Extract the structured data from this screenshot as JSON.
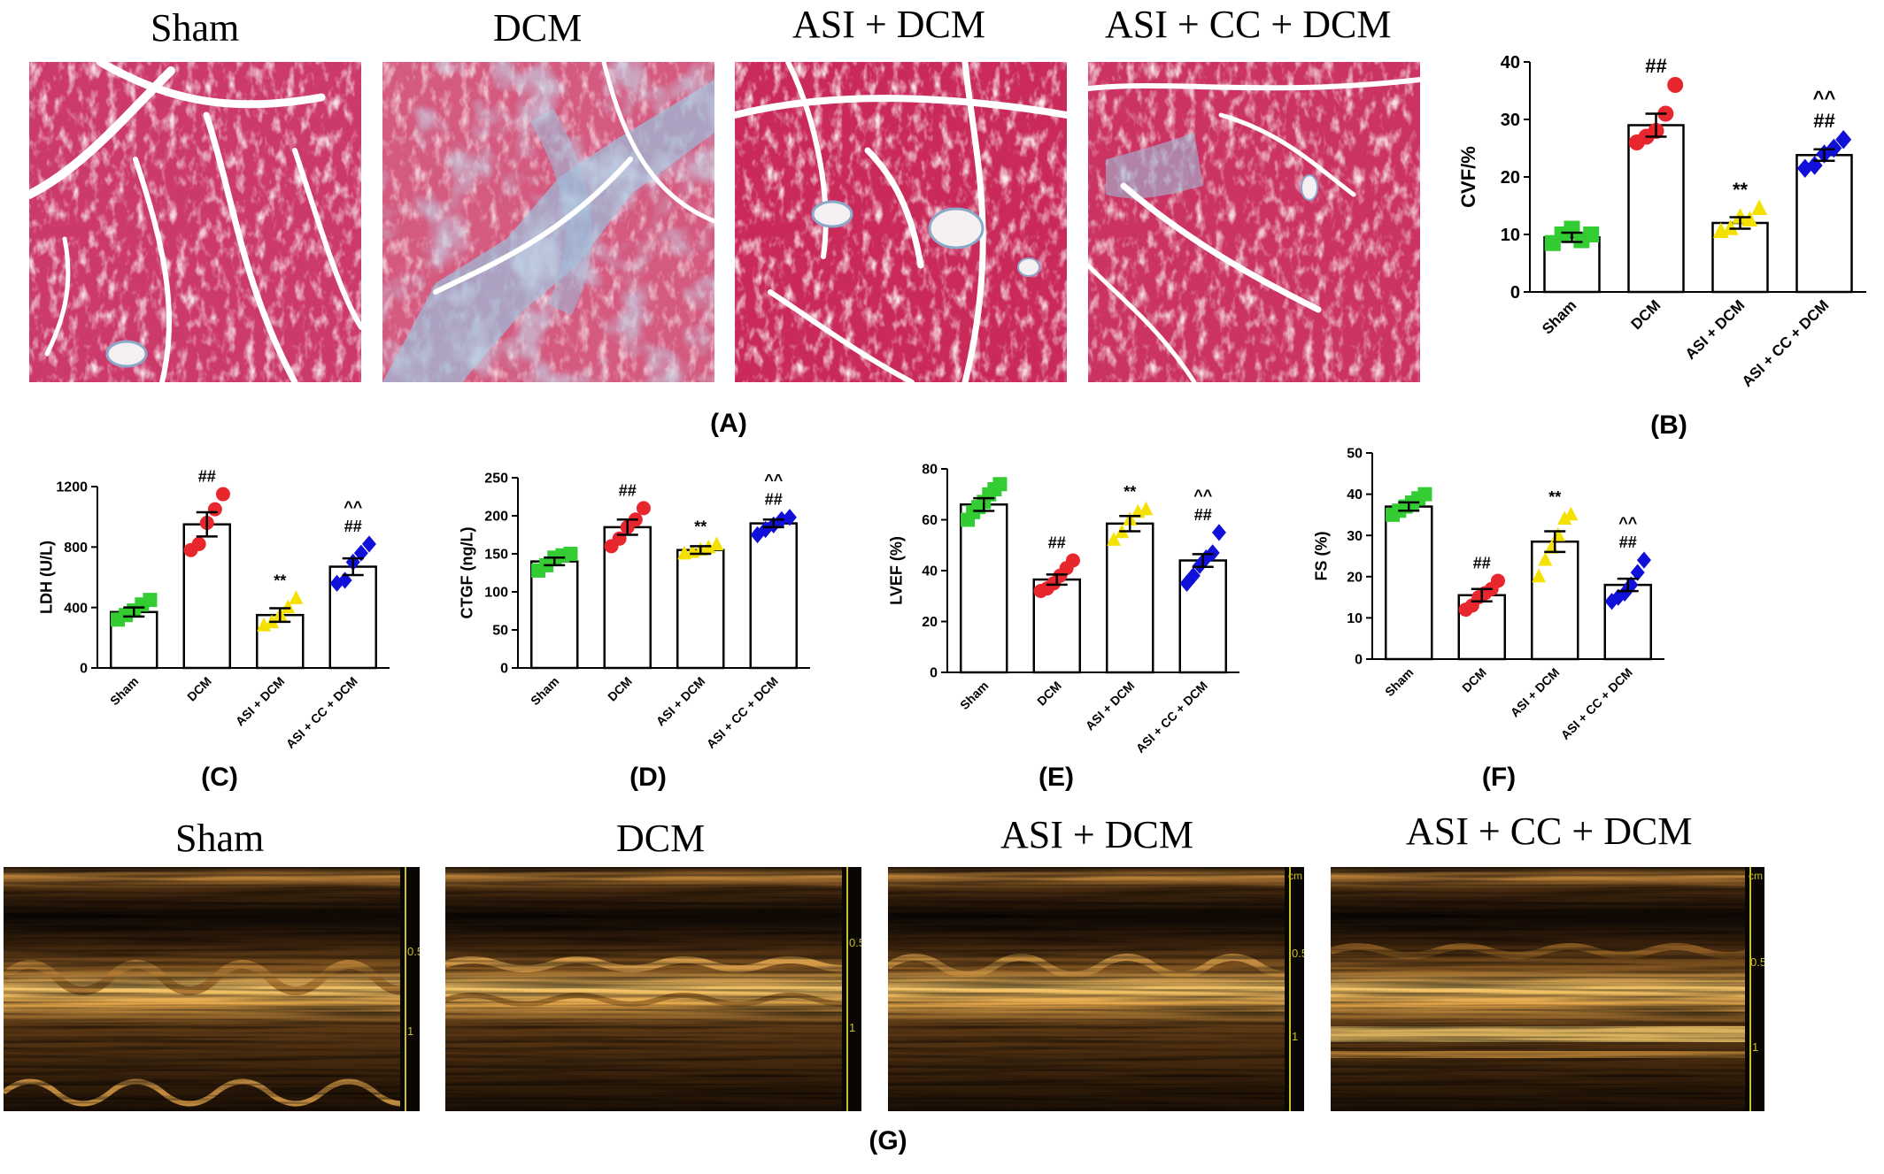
{
  "histology": {
    "titles": [
      "Sham",
      "DCM",
      "ASI + DCM",
      "ASI + CC + DCM"
    ],
    "panel_label": "(A)"
  },
  "charts": {
    "B": {
      "panel_label": "(B)",
      "ylabel": "CVF/%"
    },
    "C": {
      "panel_label": "(C)",
      "ylabel": "LDH (U/L)"
    },
    "D": {
      "panel_label": "(D)",
      "ylabel": "CTGF (ng/L)"
    },
    "E": {
      "panel_label": "(E)",
      "ylabel": "LVEF (%)"
    },
    "F": {
      "panel_label": "(F)",
      "ylabel": "FS (%)"
    }
  },
  "echo": {
    "titles": [
      "Sham",
      "DCM",
      "ASI + DCM",
      "ASI + CC + DCM"
    ],
    "panel_label": "(G)",
    "scale_cm": "cm",
    "scale_ticks": [
      "0.5",
      "1"
    ]
  },
  "colors": {
    "Sham": "#33cc33",
    "DCM": "#e8262d",
    "ASI + DCM": "#f5e100",
    "ASI + CC + DCM": "#1010d8",
    "tissue": "#cc3a6a",
    "fibrosis": "#8fb2d8"
  },
  "chart_data": [
    {
      "id": "B",
      "type": "bar",
      "categories": [
        "Sham",
        "DCM",
        "ASI + DCM",
        "ASI + CC + DCM"
      ],
      "values": [
        9.5,
        29,
        12,
        23.8
      ],
      "sem": [
        0.8,
        2.0,
        1.0,
        1.0
      ],
      "points": [
        [
          8.5,
          10,
          11,
          9,
          10
        ],
        [
          26,
          27,
          28,
          31,
          36
        ],
        [
          10.5,
          11,
          13,
          12.5,
          14.5
        ],
        [
          21.5,
          22,
          24,
          25,
          26.5
        ]
      ],
      "markers": [
        "square",
        "circle",
        "triangle",
        "diamond"
      ],
      "annotations": [
        "",
        "##",
        "**",
        "^^\n##"
      ],
      "ylabel": "CVF/%",
      "ylim": [
        0,
        40
      ],
      "yticks": [
        0,
        10,
        20,
        30,
        40
      ]
    },
    {
      "id": "C",
      "type": "bar",
      "categories": [
        "Sham",
        "DCM",
        "ASI + DCM",
        "ASI + CC + DCM"
      ],
      "values": [
        370,
        950,
        350,
        670
      ],
      "sem": [
        30,
        80,
        45,
        55
      ],
      "points": [
        [
          320,
          350,
          380,
          420,
          450
        ],
        [
          780,
          820,
          960,
          1050,
          1150
        ],
        [
          280,
          300,
          350,
          400,
          460
        ],
        [
          560,
          580,
          700,
          760,
          820
        ]
      ],
      "markers": [
        "square",
        "circle",
        "triangle",
        "diamond"
      ],
      "annotations": [
        "",
        "##",
        "**",
        "^^\n##"
      ],
      "ylabel": "LDH (U/L)",
      "ylim": [
        0,
        1200
      ],
      "yticks": [
        0,
        400,
        800,
        1200
      ]
    },
    {
      "id": "D",
      "type": "bar",
      "categories": [
        "Sham",
        "DCM",
        "ASI + DCM",
        "ASI + CC + DCM"
      ],
      "values": [
        140,
        185,
        155,
        190
      ],
      "sem": [
        5,
        10,
        5,
        5
      ],
      "points": [
        [
          128,
          135,
          145,
          148,
          150
        ],
        [
          160,
          170,
          185,
          195,
          210
        ],
        [
          150,
          152,
          155,
          158,
          162
        ],
        [
          175,
          182,
          188,
          195,
          198
        ]
      ],
      "markers": [
        "square",
        "circle",
        "triangle",
        "diamond"
      ],
      "annotations": [
        "",
        "##",
        "**",
        "^^\n##"
      ],
      "ylabel": "CTGF (ng/L)",
      "ylim": [
        0,
        250
      ],
      "yticks": [
        0,
        50,
        100,
        150,
        200,
        250
      ]
    },
    {
      "id": "E",
      "type": "bar",
      "categories": [
        "Sham",
        "DCM",
        "ASI + DCM",
        "ASI + CC + DCM"
      ],
      "values": [
        66,
        36.5,
        58.5,
        44
      ],
      "sem": [
        2.5,
        2.0,
        3.0,
        2.5
      ],
      "points": [
        [
          60,
          63,
          65,
          67,
          70,
          72,
          74
        ],
        [
          32,
          33,
          35,
          38,
          41,
          44
        ],
        [
          52,
          55,
          60,
          63,
          64
        ],
        [
          35,
          38,
          42,
          45,
          47,
          55
        ]
      ],
      "markers": [
        "square",
        "circle",
        "triangle",
        "diamond"
      ],
      "annotations": [
        "",
        "##",
        "**",
        "^^\n##"
      ],
      "ylabel": "LVEF (%)",
      "ylim": [
        0,
        80
      ],
      "yticks": [
        0,
        20,
        40,
        60,
        80
      ]
    },
    {
      "id": "F",
      "type": "bar",
      "categories": [
        "Sham",
        "DCM",
        "ASI + DCM",
        "ASI + CC + DCM"
      ],
      "values": [
        37,
        15.5,
        28.5,
        18
      ],
      "sem": [
        1.0,
        1.5,
        2.5,
        1.5
      ],
      "points": [
        [
          35,
          36,
          37,
          38,
          39,
          40
        ],
        [
          12,
          13,
          15,
          16,
          17,
          19
        ],
        [
          20,
          24,
          27,
          30,
          34,
          35
        ],
        [
          14,
          15,
          16,
          18,
          21,
          24
        ]
      ],
      "markers": [
        "square",
        "circle",
        "triangle",
        "diamond"
      ],
      "annotations": [
        "",
        "##",
        "**",
        "^^\n##"
      ],
      "ylabel": "FS (%)",
      "ylim": [
        0,
        50
      ],
      "yticks": [
        0,
        10,
        20,
        30,
        40,
        50
      ]
    }
  ]
}
